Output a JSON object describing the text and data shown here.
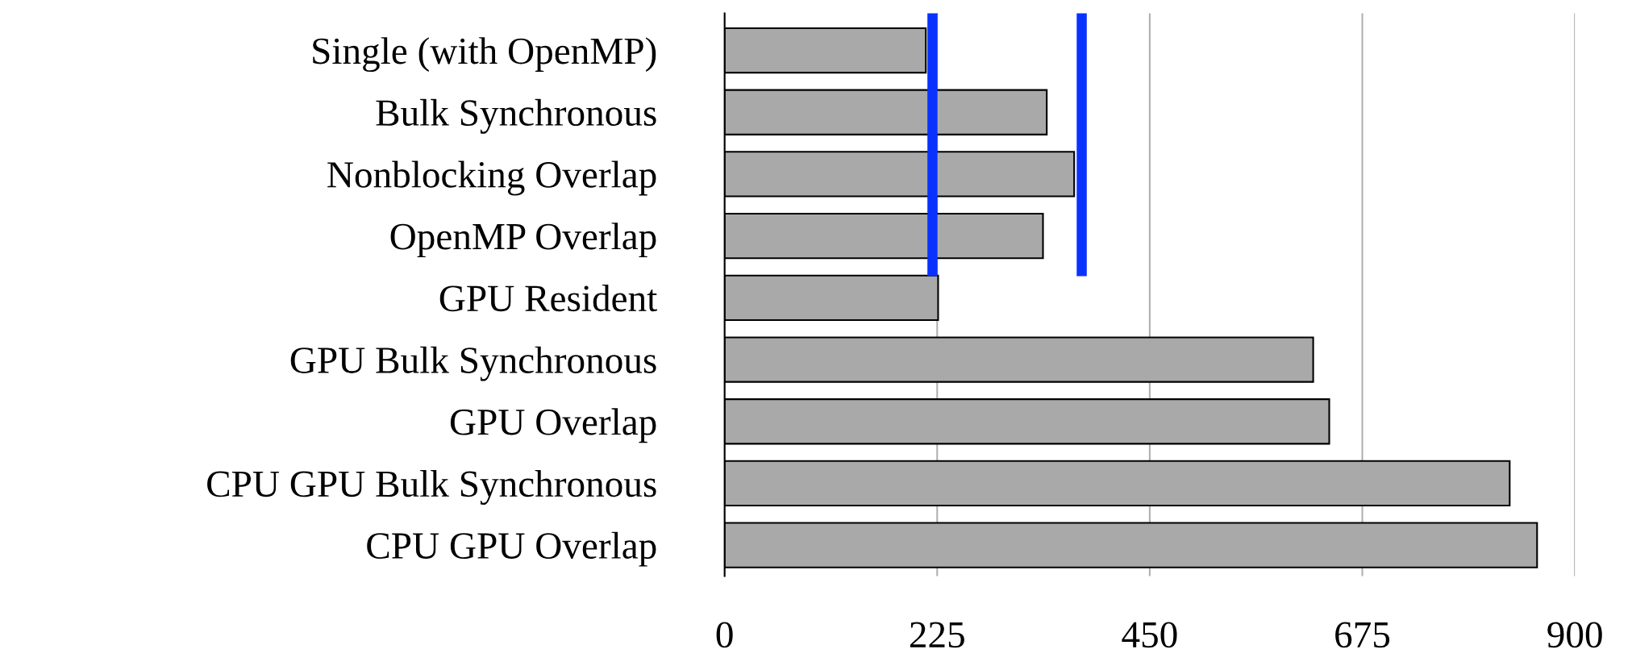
{
  "chart_data": {
    "type": "bar",
    "orientation": "horizontal",
    "categories": [
      "Single (with OpenMP)",
      "Bulk Synchronous",
      "Nonblocking Overlap",
      "OpenMP Overlap",
      "GPU Resident",
      "GPU Bulk Synchronous",
      "GPU Overlap",
      "CPU GPU Bulk Synchronous",
      "CPU GPU Overlap"
    ],
    "values": [
      213,
      341,
      370,
      337,
      226,
      623,
      640,
      831,
      860
    ],
    "color": "#a9a9a9",
    "xlim": [
      0,
      900
    ],
    "xticks": [
      0,
      225,
      450,
      675,
      900
    ],
    "grid": "x",
    "ref_lines": [
      {
        "axis": "x",
        "value": 220,
        "color": "#0a32ff"
      },
      {
        "axis": "x",
        "value": 378,
        "color": "#0a32ff"
      }
    ]
  }
}
